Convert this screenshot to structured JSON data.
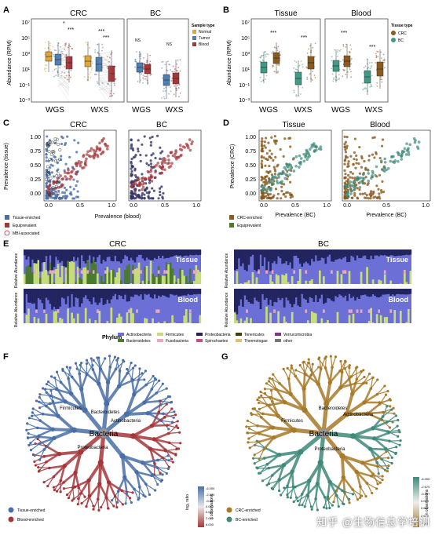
{
  "panels": {
    "A": {
      "label": "A",
      "titles": [
        "CRC",
        "BC"
      ],
      "ylabel": "Abundance (RPM)",
      "yticks": [
        "10⁷",
        "10⁵",
        "10³",
        "10¹",
        "10⁻¹",
        "10⁻³"
      ],
      "xticks": [
        "WGS",
        "WXS",
        "WGS",
        "WXS"
      ],
      "legend_title": "Sample type",
      "legend": [
        {
          "name": "Normal",
          "color": "#e0a63a"
        },
        {
          "name": "Tumor",
          "color": "#4d7fb5"
        },
        {
          "name": "Blood",
          "color": "#a5373b"
        }
      ],
      "sig": [
        "*",
        "***",
        "***",
        "***",
        "NS",
        "NS"
      ]
    },
    "B": {
      "label": "B",
      "titles": [
        "Tissue",
        "Blood"
      ],
      "ylabel": "Abundance (RPM)",
      "yticks": [
        "10⁷",
        "10⁵",
        "10³",
        "10¹",
        "10⁻¹",
        "10⁻³"
      ],
      "xticks": [
        "WGS",
        "WXS",
        "WGS",
        "WXS"
      ],
      "legend_title": "Tissue type",
      "legend": [
        {
          "name": "CRC",
          "color": "#8a5a1e"
        },
        {
          "name": "BC",
          "color": "#3f9a86"
        }
      ],
      "sig": [
        "***",
        "***",
        "***",
        "***"
      ]
    },
    "C": {
      "label": "C",
      "titles": [
        "CRC",
        "BC"
      ],
      "ylabel": "Prevalence (tissue)",
      "xlabel": "Prevalence (blood)",
      "yticks": [
        "1.00",
        "0.75",
        "0.50",
        "0.25",
        "0.00"
      ],
      "xticks": [
        "0.0",
        "0.5",
        "1.0",
        "0.0",
        "0.5",
        "1.0"
      ],
      "legend": [
        {
          "name": "Tissue-enriched",
          "color": "#4a6fa8"
        },
        {
          "name": "Equiprevalent",
          "color": "#a5373b"
        },
        {
          "name": "MBI-associated",
          "color": "#ffffff"
        }
      ]
    },
    "D": {
      "label": "D",
      "titles": [
        "Tissue",
        "Blood"
      ],
      "ylabel": "Prevalence (CRC)",
      "xlabel": "Prevalence (BC)",
      "yticks": [
        "1.00",
        "0.75",
        "0.50",
        "0.25",
        "0.00"
      ],
      "xticks": [
        "0.0",
        "0.5",
        "1.0",
        "0.0",
        "0.5",
        "1.0"
      ],
      "legend": [
        {
          "name": "CRC-enriched",
          "color": "#8a5a1e"
        },
        {
          "name": "Equiprevalent",
          "color": "#4e7a2e"
        }
      ]
    },
    "E": {
      "label": "E",
      "titles": [
        "CRC",
        "BC"
      ],
      "row_labels": [
        "Tissue",
        "Blood"
      ],
      "ylabel": "Relative Abundance",
      "legend_title": "Phylum",
      "legend": [
        {
          "name": "Actinobacteria",
          "color": "#6b6fd6"
        },
        {
          "name": "Bacteroidetes",
          "color": "#4a7a2e"
        },
        {
          "name": "Firmicutes",
          "color": "#c8dd7a"
        },
        {
          "name": "Fusobacteria",
          "color": "#e9a7c0"
        },
        {
          "name": "Proteobacteria",
          "color": "#22245e"
        },
        {
          "name": "Spirochaetes",
          "color": "#c64f7d"
        },
        {
          "name": "Tenericutes",
          "color": "#4a3a10"
        },
        {
          "name": "Thermotogae",
          "color": "#d9c27a"
        },
        {
          "name": "Verrucomicrobia",
          "color": "#8a2f8a"
        },
        {
          "name": "other",
          "color": "#777777"
        }
      ]
    },
    "F": {
      "label": "F",
      "center": "Bacteria",
      "nodes": [
        "Bacteroidetes",
        "Proteobacteria",
        "Firmicutes",
        "Actinobacteria"
      ],
      "legend": [
        {
          "name": "Tissue-enriched",
          "color": "#4a6fa8"
        },
        {
          "name": "Blood-enriched",
          "color": "#a5373b"
        }
      ],
      "cbar_label": "log₂ ratio",
      "cbar_ticks": [
        "-6.000",
        "-2.670",
        "-0.667",
        "0.000",
        "0.667",
        "2.670",
        "6.000"
      ],
      "cbar_side": "n observations"
    },
    "G": {
      "label": "G",
      "center": "Bacteria",
      "nodes": [
        "Bacteroidetes",
        "Firmicutes",
        "Proteobacteria",
        "Actinobacteria"
      ],
      "legend": [
        {
          "name": "CRC-enriched",
          "color": "#a87a2a"
        },
        {
          "name": "BC-enriched",
          "color": "#3f8a7a"
        }
      ],
      "cbar_ticks": [
        "-6.000",
        "-2.670",
        "-0.667",
        "0.000",
        "0.667",
        "2.670",
        "6.000"
      ],
      "cbar_side": "n observations"
    }
  },
  "watermark": "知乎 @生物信息学培训"
}
